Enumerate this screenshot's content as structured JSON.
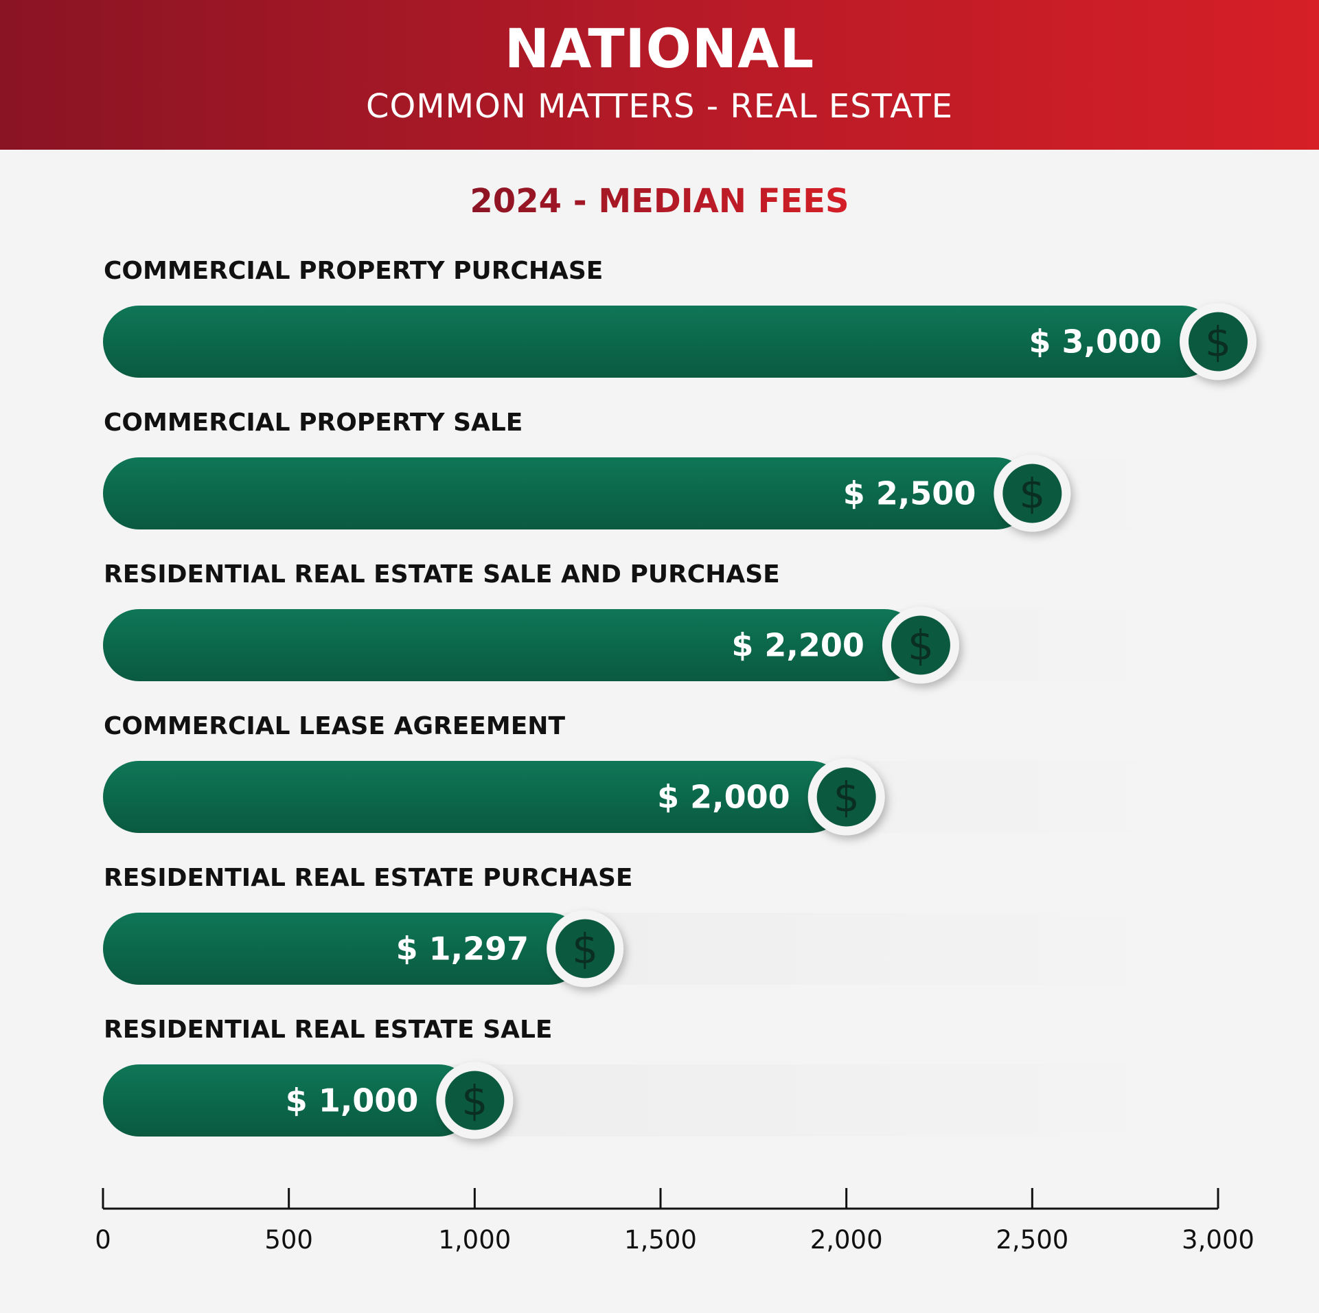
{
  "header": {
    "title": "NATIONAL",
    "subtitle": "COMMON MATTERS - REAL ESTATE"
  },
  "colors": {
    "header_start": "#8a1424",
    "header_end": "#d61f27",
    "bar_start": "#0e7656",
    "bar_end": "#0a5a40",
    "background": "#f4f4f4"
  },
  "chart_data": {
    "type": "bar",
    "orientation": "horizontal",
    "title": "2024 - MEDIAN FEES",
    "categories": [
      "COMMERCIAL PROPERTY PURCHASE",
      "COMMERCIAL PROPERTY SALE",
      "RESIDENTIAL REAL ESTATE SALE AND PURCHASE",
      "COMMERCIAL LEASE AGREEMENT",
      "RESIDENTIAL REAL ESTATE PURCHASE",
      "RESIDENTIAL REAL ESTATE SALE"
    ],
    "values": [
      3000,
      2500,
      2200,
      2000,
      1297,
      1000
    ],
    "value_labels": [
      "$ 3,000",
      "$ 2,500",
      "$ 2,200",
      "$ 2,000",
      "$ 1,297",
      "$ 1,000"
    ],
    "marker_icon": "dollar-icon",
    "xlim": [
      0,
      3000
    ],
    "xticks": [
      0,
      500,
      1000,
      1500,
      2000,
      2500,
      3000
    ],
    "xtick_labels": [
      "0",
      "500",
      "1,000",
      "1,500",
      "2,000",
      "2,500",
      "3,000"
    ],
    "grid": false,
    "legend": "none"
  }
}
